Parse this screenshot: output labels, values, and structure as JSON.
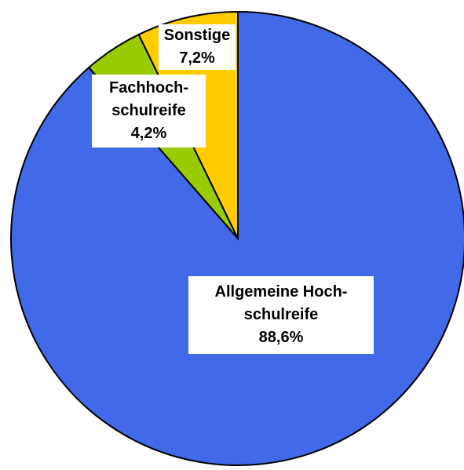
{
  "chart_data": {
    "type": "pie",
    "categories": [
      "Allgemeine Hoch-\nschulreife",
      "Fachhoch-\nschulreife",
      "Sonstige"
    ],
    "values": [
      88.6,
      4.2,
      7.2
    ],
    "value_labels": [
      "88,6%",
      "4,2%",
      "7,2%"
    ],
    "colors": [
      "#4169e8",
      "#99cc00",
      "#ffcc00"
    ]
  }
}
